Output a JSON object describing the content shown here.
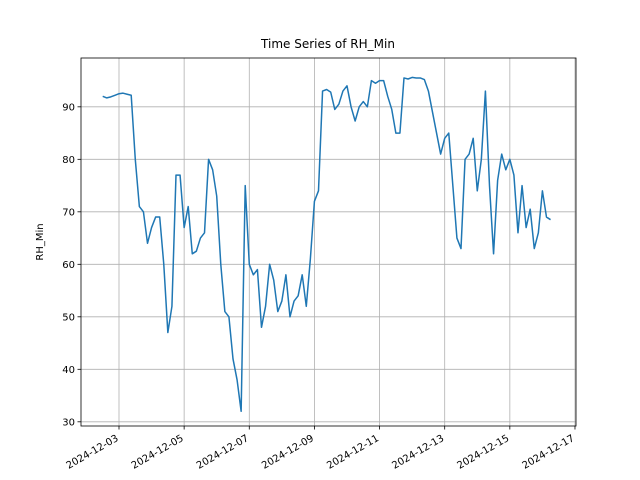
{
  "chart_data": {
    "type": "line",
    "title": "Time Series of RH_Min",
    "ylabel": "RH_Min",
    "grid": true,
    "x": [
      "2024-12-02T12:00",
      "2024-12-02T15:00",
      "2024-12-02T18:00",
      "2024-12-02T21:00",
      "2024-12-03T00:00",
      "2024-12-03T03:00",
      "2024-12-03T06:00",
      "2024-12-03T09:00",
      "2024-12-03T12:00",
      "2024-12-03T15:00",
      "2024-12-03T18:00",
      "2024-12-03T21:00",
      "2024-12-04T00:00",
      "2024-12-04T03:00",
      "2024-12-04T06:00",
      "2024-12-04T09:00",
      "2024-12-04T12:00",
      "2024-12-04T15:00",
      "2024-12-04T18:00",
      "2024-12-04T21:00",
      "2024-12-05T00:00",
      "2024-12-05T03:00",
      "2024-12-05T06:00",
      "2024-12-05T09:00",
      "2024-12-05T12:00",
      "2024-12-05T15:00",
      "2024-12-05T18:00",
      "2024-12-05T21:00",
      "2024-12-06T00:00",
      "2024-12-06T03:00",
      "2024-12-06T06:00",
      "2024-12-06T09:00",
      "2024-12-06T12:00",
      "2024-12-06T15:00",
      "2024-12-06T18:00",
      "2024-12-06T21:00",
      "2024-12-07T00:00",
      "2024-12-07T03:00",
      "2024-12-07T06:00",
      "2024-12-07T09:00",
      "2024-12-07T12:00",
      "2024-12-07T15:00",
      "2024-12-07T18:00",
      "2024-12-07T21:00",
      "2024-12-08T00:00",
      "2024-12-08T03:00",
      "2024-12-08T06:00",
      "2024-12-08T09:00",
      "2024-12-08T12:00",
      "2024-12-08T15:00",
      "2024-12-08T18:00",
      "2024-12-08T21:00",
      "2024-12-09T00:00",
      "2024-12-09T03:00",
      "2024-12-09T06:00",
      "2024-12-09T09:00",
      "2024-12-09T12:00",
      "2024-12-09T15:00",
      "2024-12-09T18:00",
      "2024-12-09T21:00",
      "2024-12-10T00:00",
      "2024-12-10T03:00",
      "2024-12-10T06:00",
      "2024-12-10T09:00",
      "2024-12-10T12:00",
      "2024-12-10T15:00",
      "2024-12-10T18:00",
      "2024-12-10T21:00",
      "2024-12-11T00:00",
      "2024-12-11T03:00",
      "2024-12-11T06:00",
      "2024-12-11T09:00",
      "2024-12-11T12:00",
      "2024-12-11T15:00",
      "2024-12-11T18:00",
      "2024-12-11T21:00",
      "2024-12-12T00:00",
      "2024-12-12T03:00",
      "2024-12-12T06:00",
      "2024-12-12T09:00",
      "2024-12-12T12:00",
      "2024-12-12T15:00",
      "2024-12-12T18:00",
      "2024-12-12T21:00",
      "2024-12-13T00:00",
      "2024-12-13T03:00",
      "2024-12-13T06:00",
      "2024-12-13T09:00",
      "2024-12-13T12:00",
      "2024-12-13T15:00",
      "2024-12-13T18:00",
      "2024-12-13T21:00",
      "2024-12-14T00:00",
      "2024-12-14T03:00",
      "2024-12-14T06:00",
      "2024-12-14T09:00",
      "2024-12-14T12:00",
      "2024-12-14T15:00",
      "2024-12-14T18:00",
      "2024-12-14T21:00",
      "2024-12-15T00:00",
      "2024-12-15T03:00",
      "2024-12-15T06:00",
      "2024-12-15T09:00",
      "2024-12-15T12:00",
      "2024-12-15T15:00",
      "2024-12-15T18:00",
      "2024-12-15T21:00",
      "2024-12-16T00:00",
      "2024-12-16T03:00",
      "2024-12-16T06:00"
    ],
    "series": [
      {
        "name": "RH_Min",
        "color": "#1f77b4",
        "values": [
          92,
          91.7,
          91.9,
          92.2,
          92.5,
          92.6,
          92.4,
          92.2,
          80,
          71,
          70,
          64,
          67,
          69,
          69,
          60,
          47,
          52,
          77,
          77,
          67,
          71,
          62,
          62.5,
          65,
          66,
          80,
          78,
          73,
          60,
          51,
          50,
          42,
          38,
          32,
          75,
          60,
          58,
          59,
          48,
          52,
          60,
          57,
          51,
          53,
          58,
          50,
          53,
          54,
          58,
          52,
          61,
          72,
          74,
          93,
          93.3,
          92.8,
          89.5,
          90.5,
          93,
          94,
          90,
          87.3,
          90,
          91,
          90,
          95,
          94.5,
          95,
          95,
          92,
          89.5,
          85,
          85,
          95.5,
          95.3,
          95.6,
          95.5,
          95.5,
          95.2,
          93,
          89,
          85,
          81,
          84,
          85,
          75,
          65,
          63,
          80,
          81,
          84,
          74,
          80,
          93,
          75,
          62,
          76,
          81,
          78,
          80,
          77,
          66,
          75,
          67,
          70.5,
          63,
          66,
          74,
          69,
          68.5
        ]
      }
    ],
    "xlim": [
      "2024-12-01T20:00",
      "2024-12-17T00:45"
    ],
    "xticks": [
      "2024-12-03",
      "2024-12-05",
      "2024-12-07",
      "2024-12-09",
      "2024-12-11",
      "2024-12-13",
      "2024-12-15",
      "2024-12-17"
    ],
    "ylim": [
      29.2,
      99.3
    ],
    "yticks": [
      30,
      40,
      50,
      60,
      70,
      80,
      90
    ]
  }
}
